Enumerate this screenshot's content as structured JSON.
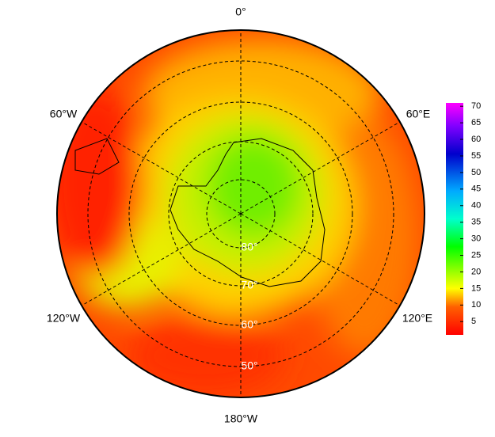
{
  "map": {
    "longitude_labels": [
      "0°",
      "60°E",
      "120°E",
      "180°W",
      "120°W",
      "60°W"
    ],
    "latitude_labels": [
      "80°",
      "70°",
      "60°",
      "50°"
    ],
    "colorbar": {
      "range": [
        1,
        71
      ],
      "ticks": [
        5,
        10,
        15,
        20,
        25,
        30,
        35,
        40,
        45,
        50,
        55,
        60,
        65,
        70
      ]
    }
  }
}
